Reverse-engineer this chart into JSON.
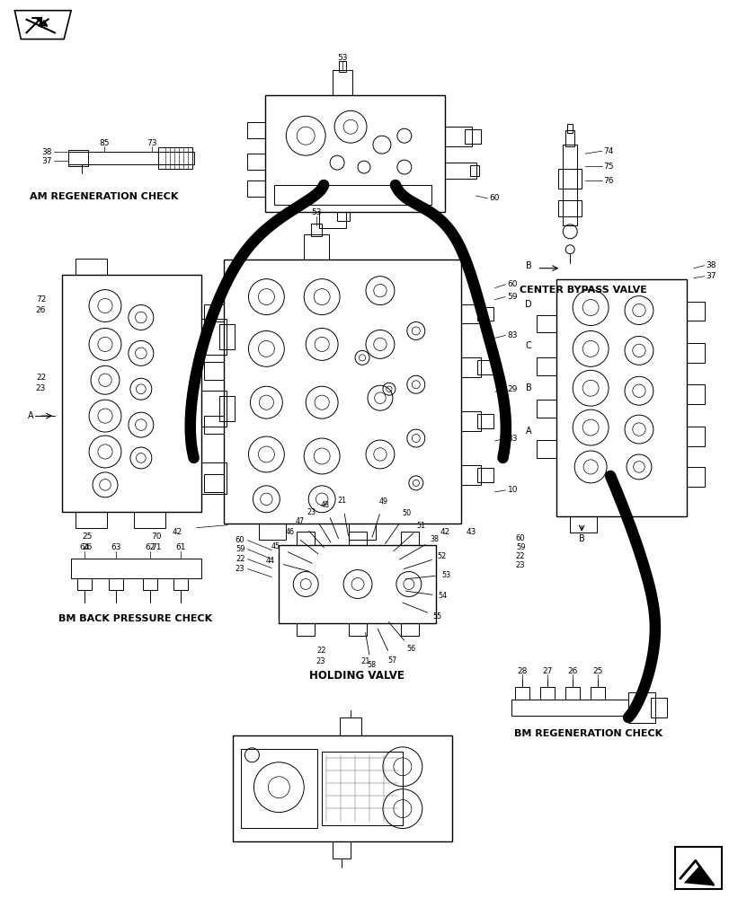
{
  "bg_color": "#ffffff",
  "line_color": "#000000",
  "fig_width": 8.12,
  "fig_height": 10.0,
  "dpi": 100,
  "labels": {
    "am_regen_check": "AM REGENERATION CHECK",
    "center_bypass": "CENTER BYPASS VALVE",
    "bm_back_pressure": "BM BACK PRESSURE CHECK",
    "holding_valve": "HOLDING VALVE",
    "bm_regen_check": "BM REGENERATION CHECK"
  }
}
